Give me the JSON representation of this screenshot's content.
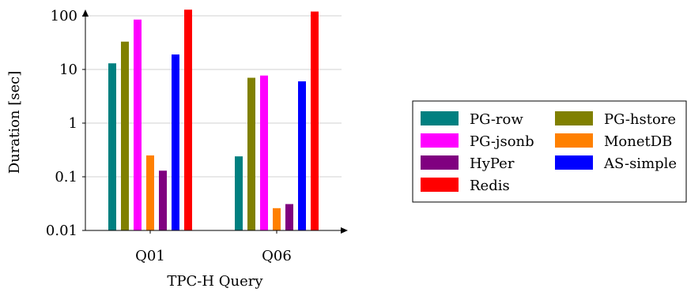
{
  "chart_data": {
    "type": "bar",
    "xlabel": "TPC-H Query",
    "ylabel": "Duration [sec]",
    "yscale": "log",
    "ylim": [
      0.01,
      100
    ],
    "yticks": [
      {
        "value": 100,
        "label": "100"
      },
      {
        "value": 10,
        "label": "10"
      },
      {
        "value": 1,
        "label": "1"
      },
      {
        "value": 0.1,
        "label": "0.1"
      },
      {
        "value": 0.01,
        "label": "0.01"
      }
    ],
    "grid": "horizontal",
    "legend_position": "right",
    "categories": [
      "Q01",
      "Q06"
    ],
    "series": [
      {
        "name": "PG-row",
        "color": "#008080",
        "values": [
          13,
          0.24
        ]
      },
      {
        "name": "PG-hstore",
        "color": "#808000",
        "values": [
          33,
          7
        ]
      },
      {
        "name": "PG-jsonb",
        "color": "#FF00FF",
        "values": [
          85,
          7.7
        ]
      },
      {
        "name": "MonetDB",
        "color": "#FF8000",
        "values": [
          0.25,
          0.026
        ]
      },
      {
        "name": "HyPer",
        "color": "#800080",
        "values": [
          0.13,
          0.031
        ]
      },
      {
        "name": "AS-simple",
        "color": "#0000FF",
        "values": [
          19,
          6
        ]
      },
      {
        "name": "Redis",
        "color": "#FF0000",
        "values": [
          130,
          120
        ]
      }
    ]
  }
}
